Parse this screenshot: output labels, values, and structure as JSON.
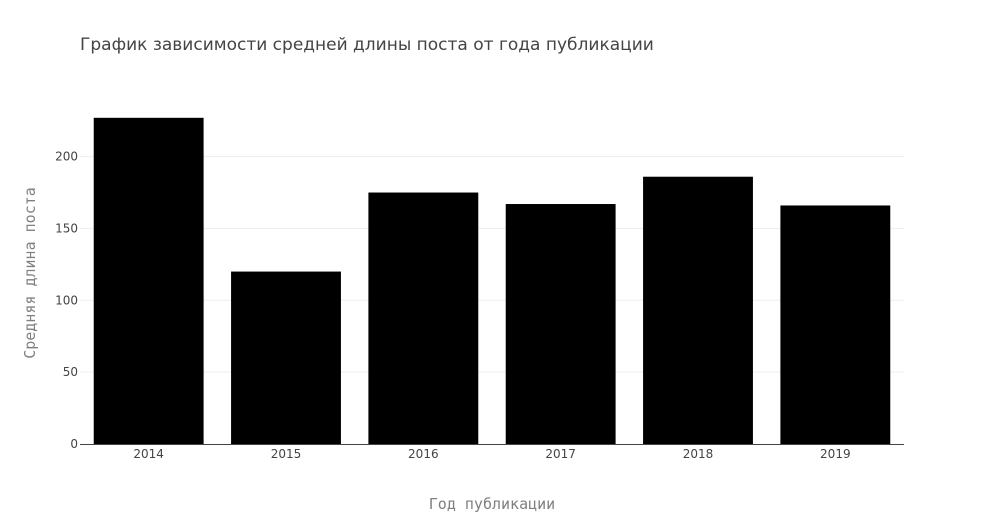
{
  "chart_data": {
    "type": "bar",
    "title": "График зависимости средней длины поста от года публикации",
    "xlabel": "Год публикации",
    "ylabel": "Средняя длина поста",
    "categories": [
      "2014",
      "2015",
      "2016",
      "2017",
      "2018",
      "2019"
    ],
    "values": [
      227,
      120,
      175,
      167,
      186,
      166
    ],
    "ylim": [
      0,
      238
    ],
    "yticks": [
      0,
      50,
      100,
      150,
      200
    ],
    "grid": true,
    "bar_color": "#000000",
    "grid_color": "#eeeeee"
  }
}
